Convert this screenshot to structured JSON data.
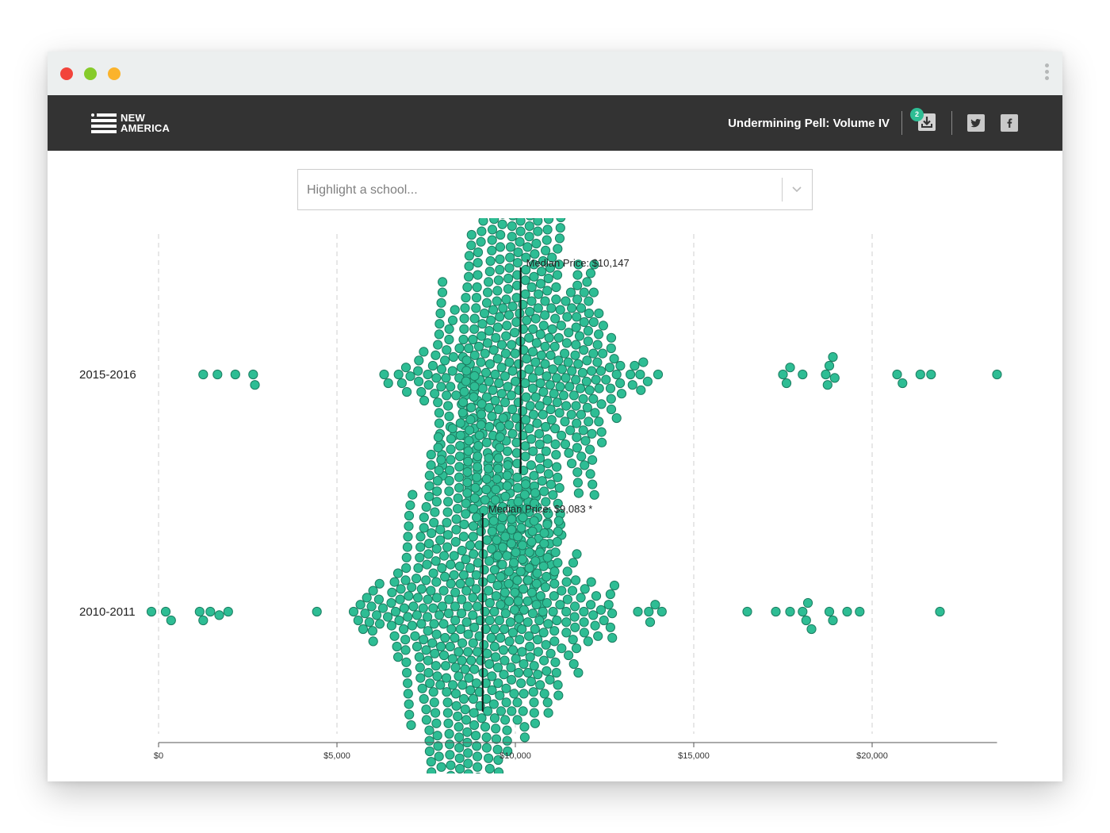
{
  "window": {
    "controls": [
      "close",
      "minimize",
      "maximize"
    ],
    "menu_icon": "kebab-menu-icon"
  },
  "header": {
    "logo_line1": "NEW",
    "logo_line2": "AMERICA",
    "report_title": "Undermining Pell: Volume IV",
    "download_badge": "2",
    "icons": [
      "download-icon",
      "twitter-icon",
      "facebook-icon"
    ]
  },
  "search": {
    "placeholder": "Highlight a school..."
  },
  "colors": {
    "dot_fill": "#2ebd94",
    "dot_stroke": "#1c7d61",
    "header_bg": "#333333",
    "median_line": "#111111",
    "grid": "#cfcfcf"
  },
  "chart_data": {
    "type": "scatter",
    "subtype": "beeswarm",
    "title": "",
    "xlabel": "",
    "ylabel": "",
    "xlim": [
      0,
      23500
    ],
    "x_ticks": [
      0,
      5000,
      10000,
      15000,
      20000
    ],
    "x_tick_labels": [
      "$0",
      "$5,000",
      "$10,000",
      "$15,000",
      "$20,000"
    ],
    "grid": "vertical dashed at each tick",
    "series": [
      {
        "name": "2015-2016",
        "median": 10147,
        "median_label": "Median Price: $10,147",
        "approx_count": 600,
        "distribution": "roughly normal, peak near $10,000, spread $4,500–$16,500",
        "outliers": [
          1250,
          1650,
          2150,
          2650,
          2700,
          17500,
          17600,
          17700,
          18050,
          18700,
          18750,
          18800,
          18900,
          18950,
          20700,
          20850,
          21350,
          21650,
          23500
        ]
      },
      {
        "name": "2010-2011",
        "median": 9083,
        "median_label": "Median Price: $9,083 *",
        "approx_count": 600,
        "distribution": "roughly normal, peak near $8,800, spread $2,500–$15,500",
        "outliers": [
          -200,
          200,
          350,
          1150,
          1250,
          1450,
          1700,
          1950,
          16500,
          17300,
          17700,
          18050,
          18150,
          18200,
          18300,
          18800,
          18900,
          19300,
          19650,
          21900
        ]
      }
    ]
  }
}
